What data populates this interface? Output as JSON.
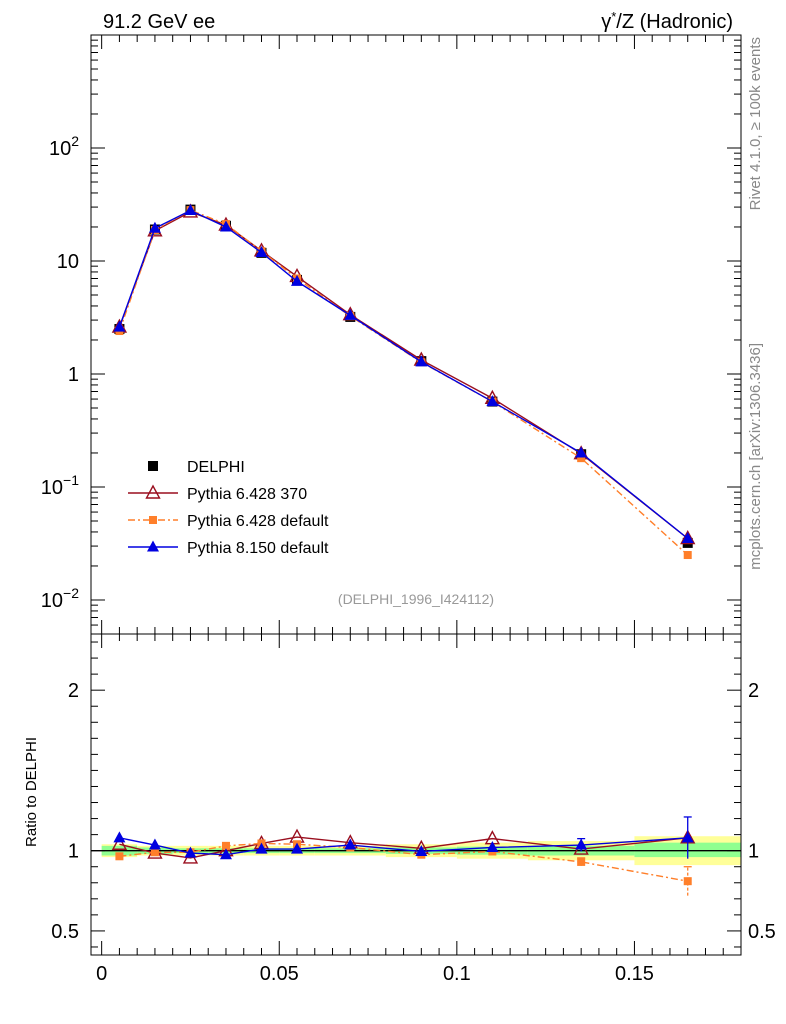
{
  "header": {
    "left_title": "91.2 GeV ee",
    "right_title_prefix": "γ",
    "right_title_sup": "*",
    "right_title_rest": "/Z (Hadronic)"
  },
  "side_labels": {
    "rivet": "Rivet 4.1.0, ≥ 100k events",
    "mcplots": "mcplots.cern.ch [arXiv:1306.3436]"
  },
  "analysis_label": "(DELPHI_1996_I424112)",
  "colors": {
    "data": "#000000",
    "py6_370": "#9a0f1f",
    "py6_default": "#ff7f2a",
    "py8_default": "#0000e0",
    "band_green": "#90ff90",
    "band_yellow": "#ffff99"
  },
  "chart_data": [
    {
      "type": "line",
      "name": "main",
      "yscale": "log",
      "ylim": [
        0.005,
        1000
      ],
      "xlim": [
        -0.003,
        0.18
      ],
      "y_ticks": [
        {
          "v": 0.01,
          "base": "10",
          "exp": "−2"
        },
        {
          "v": 0.1,
          "base": "10",
          "exp": "−1"
        },
        {
          "v": 1,
          "base": "1",
          "exp": ""
        },
        {
          "v": 10,
          "base": "10",
          "exp": ""
        },
        {
          "v": 100,
          "base": "10",
          "exp": "2"
        }
      ],
      "x": [
        0.005,
        0.015,
        0.025,
        0.035,
        0.045,
        0.055,
        0.07,
        0.09,
        0.11,
        0.135,
        0.165
      ],
      "series": [
        {
          "name": "DELPHI",
          "key": "data",
          "marker": "square",
          "values": [
            2.5,
            19,
            28.5,
            20.5,
            11.8,
            6.8,
            3.2,
            1.3,
            0.57,
            0.195,
            0.032
          ]
        },
        {
          "name": "Pythia 6.428 370",
          "key": "py6_370",
          "marker": "open-triangle",
          "values": [
            2.6,
            18.5,
            27.2,
            20.8,
            12.3,
            7.3,
            3.35,
            1.33,
            0.61,
            0.197,
            0.035
          ]
        },
        {
          "name": "Pythia 6.428 default",
          "key": "py6_default",
          "marker": "square-small",
          "values": [
            2.4,
            18.8,
            28.2,
            21.2,
            12.2,
            7.0,
            3.25,
            1.27,
            0.57,
            0.18,
            0.025
          ]
        },
        {
          "name": "Pythia 8.150 default",
          "key": "py8_default",
          "marker": "triangle",
          "values": [
            2.6,
            19.5,
            28.0,
            20.0,
            11.9,
            6.6,
            3.3,
            1.28,
            0.57,
            0.2,
            0.035
          ]
        }
      ]
    },
    {
      "type": "line",
      "name": "ratio",
      "ylabel": "Ratio to DELPHI",
      "ylim": [
        0.35,
        2.35
      ],
      "y_tick_labels": [
        {
          "v": 0.5,
          "label": "0.5"
        },
        {
          "v": 1,
          "label": "1"
        },
        {
          "v": 2,
          "label": "2"
        }
      ],
      "x_tick_labels": [
        {
          "v": 0,
          "label": "0"
        },
        {
          "v": 0.05,
          "label": "0.05"
        },
        {
          "v": 0.1,
          "label": "0.1"
        },
        {
          "v": 0.15,
          "label": "0.15"
        }
      ],
      "bands": [
        {
          "x0": 0,
          "x1": 0.01,
          "green": [
            0.97,
            1.03
          ],
          "yellow": [
            0.96,
            1.04
          ]
        },
        {
          "x0": 0.01,
          "x1": 0.02,
          "green": [
            0.98,
            1.02
          ],
          "yellow": [
            0.97,
            1.03
          ]
        },
        {
          "x0": 0.02,
          "x1": 0.03,
          "green": [
            0.985,
            1.015
          ],
          "yellow": [
            0.97,
            1.03
          ]
        },
        {
          "x0": 0.03,
          "x1": 0.04,
          "green": [
            0.985,
            1.015
          ],
          "yellow": [
            0.97,
            1.03
          ]
        },
        {
          "x0": 0.04,
          "x1": 0.05,
          "green": [
            0.985,
            1.015
          ],
          "yellow": [
            0.97,
            1.03
          ]
        },
        {
          "x0": 0.05,
          "x1": 0.06,
          "green": [
            0.985,
            1.015
          ],
          "yellow": [
            0.97,
            1.03
          ]
        },
        {
          "x0": 0.06,
          "x1": 0.08,
          "green": [
            0.985,
            1.015
          ],
          "yellow": [
            0.97,
            1.03
          ]
        },
        {
          "x0": 0.08,
          "x1": 0.1,
          "green": [
            0.98,
            1.02
          ],
          "yellow": [
            0.96,
            1.04
          ]
        },
        {
          "x0": 0.1,
          "x1": 0.12,
          "green": [
            0.975,
            1.025
          ],
          "yellow": [
            0.95,
            1.05
          ]
        },
        {
          "x0": 0.12,
          "x1": 0.15,
          "green": [
            0.97,
            1.03
          ],
          "yellow": [
            0.94,
            1.06
          ]
        },
        {
          "x0": 0.15,
          "x1": 0.18,
          "green": [
            0.96,
            1.05
          ],
          "yellow": [
            0.91,
            1.09
          ]
        }
      ],
      "x": [
        0.005,
        0.015,
        0.025,
        0.035,
        0.045,
        0.055,
        0.07,
        0.09,
        0.11,
        0.135,
        0.165
      ],
      "series": [
        {
          "name": "Pythia 6.428 370",
          "key": "py6_370",
          "marker": "open-triangle",
          "values": [
            1.04,
            0.985,
            0.955,
            1.0,
            1.045,
            1.085,
            1.05,
            1.015,
            1.075,
            1.01,
            1.08
          ]
        },
        {
          "name": "Pythia 6.428 default",
          "key": "py6_default",
          "marker": "square-small",
          "values": [
            0.965,
            0.99,
            0.99,
            1.03,
            1.045,
            1.04,
            1.02,
            0.975,
            0.995,
            0.93,
            0.81
          ],
          "errors": [
            0,
            0,
            0,
            0,
            0,
            0,
            0,
            0,
            0,
            0.025,
            0.09
          ]
        },
        {
          "name": "Pythia 8.150 default",
          "key": "py8_default",
          "marker": "triangle",
          "values": [
            1.08,
            1.035,
            0.985,
            0.975,
            1.01,
            1.01,
            1.035,
            0.995,
            1.02,
            1.035,
            1.08
          ],
          "errors": [
            0,
            0,
            0,
            0,
            0,
            0,
            0,
            0,
            0,
            0.04,
            0.13
          ]
        }
      ]
    }
  ]
}
